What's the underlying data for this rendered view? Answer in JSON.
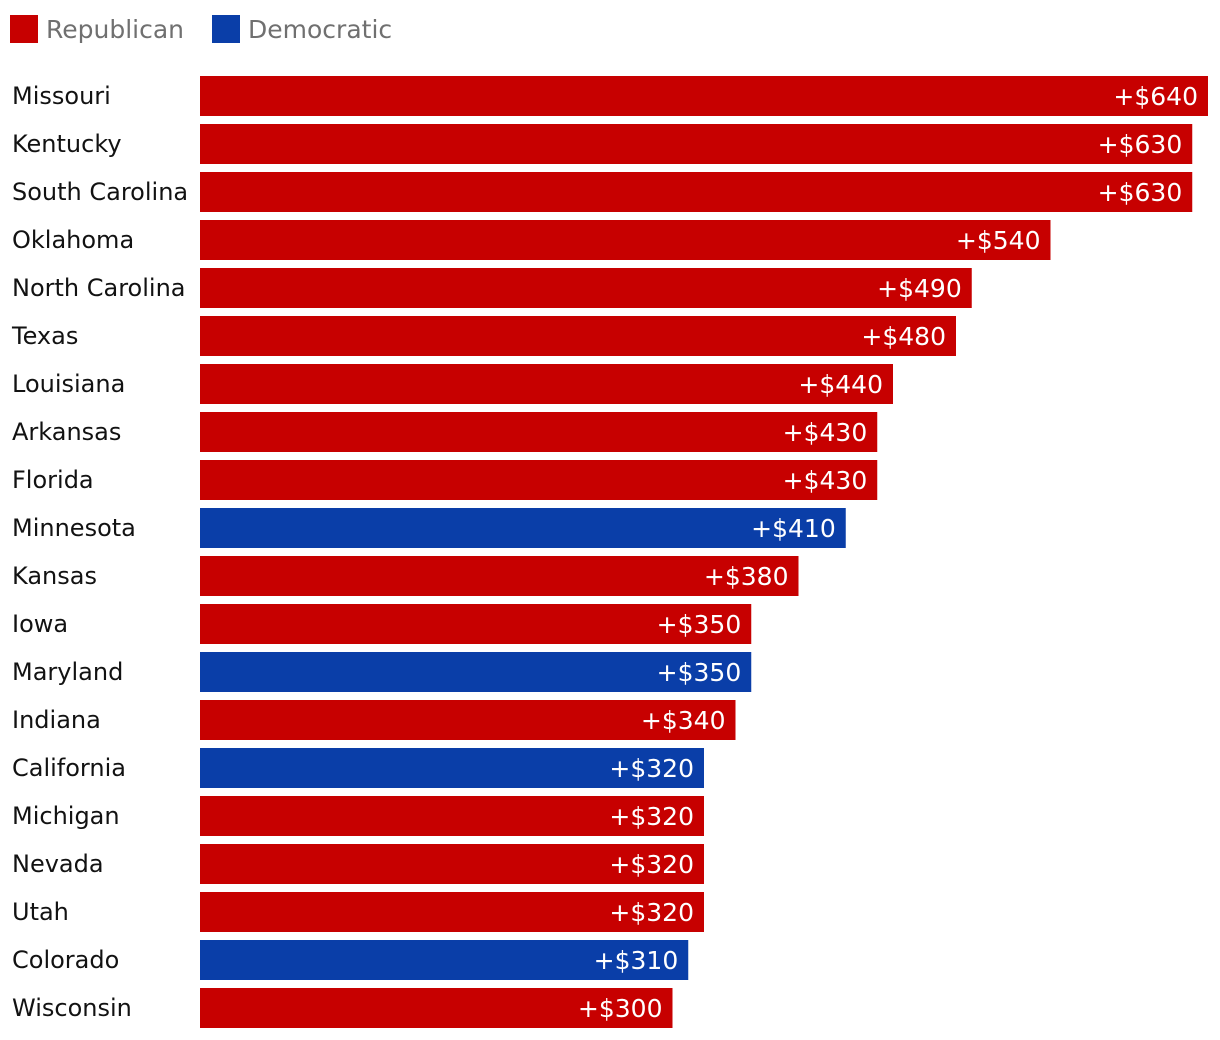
{
  "legend": {
    "republican": {
      "label": "Republican",
      "color": "#c70000"
    },
    "democratic": {
      "label": "Democratic",
      "color": "#0a3ea8"
    }
  },
  "chart_data": {
    "type": "bar",
    "orientation": "horizontal",
    "categories": [
      "Missouri",
      "Kentucky",
      "South Carolina",
      "Oklahoma",
      "North Carolina",
      "Texas",
      "Louisiana",
      "Arkansas",
      "Florida",
      "Minnesota",
      "Kansas",
      "Iowa",
      "Maryland",
      "Indiana",
      "California",
      "Michigan",
      "Nevada",
      "Utah",
      "Colorado",
      "Wisconsin"
    ],
    "values": [
      640,
      630,
      630,
      540,
      490,
      480,
      440,
      430,
      430,
      410,
      380,
      350,
      350,
      340,
      320,
      320,
      320,
      320,
      310,
      300
    ],
    "value_labels": [
      "+$640",
      "+$630",
      "+$630",
      "+$540",
      "+$490",
      "+$480",
      "+$440",
      "+$430",
      "+$430",
      "+$410",
      "+$380",
      "+$350",
      "+$350",
      "+$340",
      "+$320",
      "+$320",
      "+$320",
      "+$320",
      "+$310",
      "+$300"
    ],
    "party": [
      "Republican",
      "Republican",
      "Republican",
      "Republican",
      "Republican",
      "Republican",
      "Republican",
      "Republican",
      "Republican",
      "Democratic",
      "Republican",
      "Republican",
      "Democratic",
      "Republican",
      "Democratic",
      "Republican",
      "Republican",
      "Republican",
      "Democratic",
      "Republican"
    ],
    "xlim": [
      0,
      640
    ],
    "legend_position": "top-left",
    "grid": false,
    "title": "",
    "xlabel": "",
    "ylabel": ""
  }
}
